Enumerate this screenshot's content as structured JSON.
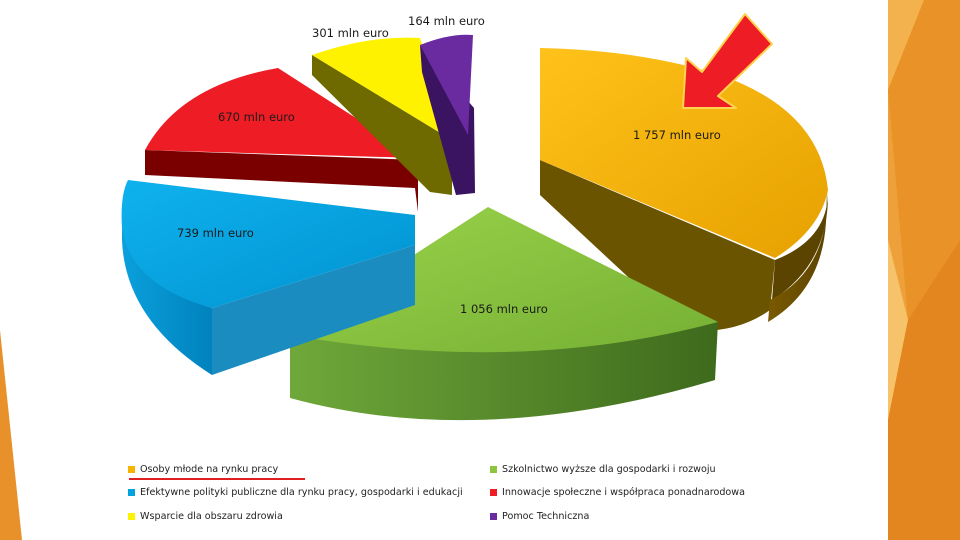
{
  "colors": {
    "background": "#ffffff",
    "accent_orange": "#e8912a",
    "accent_orange_light": "#f3b04a",
    "arrow_red": "#ee1c24",
    "arrow_outline": "#ffd34d",
    "underline_red": "#e02020"
  },
  "chart_data": {
    "type": "pie",
    "style": "3d-exploded",
    "title": "",
    "legend_position": "bottom",
    "slices": [
      {
        "label": "Osoby młode na rynku pracy",
        "value": 1757,
        "data_label": "1 757 mln euro",
        "color": "#f5b400",
        "highlighted": true
      },
      {
        "label": "Szkolnictwo wyższe dla gospodarki i rozwoju",
        "value": 1056,
        "data_label": "1 056 mln euro",
        "color": "#8cc63f"
      },
      {
        "label": "Efektywne polityki publiczne dla rynku pracy, gospodarki i edukacji",
        "value": 739,
        "data_label": "739 mln euro",
        "color": "#00a2e0"
      },
      {
        "label": "Innowacje społeczne i współpraca ponadnarodowa",
        "value": 670,
        "data_label": "670 mln euro",
        "color": "#ee1c24"
      },
      {
        "label": "Wsparcie dla obszaru zdrowia",
        "value": 301,
        "data_label": "301 mln euro",
        "color": "#fff200"
      },
      {
        "label": "Pomoc Techniczna",
        "value": 164,
        "data_label": "164 mln euro",
        "color": "#6a2aa0"
      }
    ]
  },
  "legend": [
    {
      "label": "Osoby młode na rynku pracy",
      "color": "#f5b400"
    },
    {
      "label": "Szkolnictwo wyższe dla gospodarki i rozwoju",
      "color": "#8cc63f"
    },
    {
      "label": "Efektywne polityki publiczne dla rynku pracy, gospodarki i edukacji",
      "color": "#00a2e0"
    },
    {
      "label": "Innowacje społeczne i współpraca ponadnarodowa",
      "color": "#ee1c24"
    },
    {
      "label": "Wsparcie dla obszaru zdrowia",
      "color": "#fff200"
    },
    {
      "label": "Pomoc Techniczna",
      "color": "#6a2aa0"
    }
  ]
}
